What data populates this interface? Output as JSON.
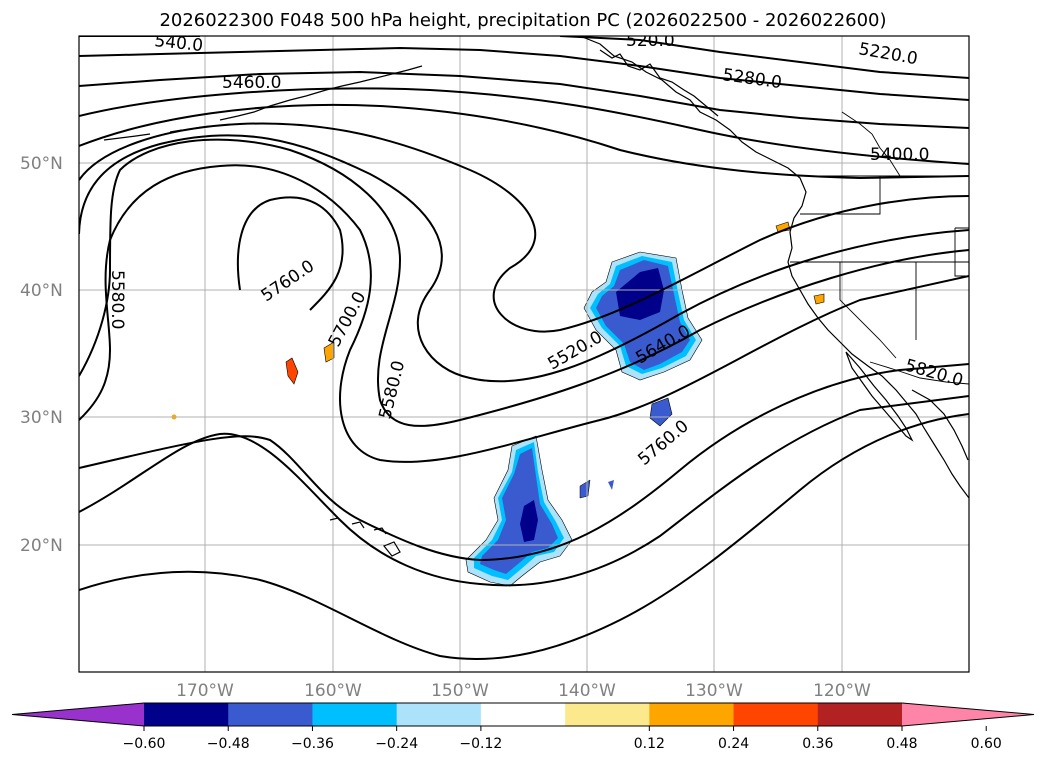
{
  "title": "2026022300 F048 500 hPa height, precipitation PC (2026022500 - 2026022600)",
  "lat_labels": [
    "50°N",
    "40°N",
    "30°N",
    "20°N"
  ],
  "lon_labels": [
    "170°W",
    "160°W",
    "150°W",
    "140°W",
    "130°W",
    "120°W"
  ],
  "contour_labels": {
    "c1": "5460.0",
    "c2": "5280.0",
    "c3": "5220.0",
    "c4": "5400.0",
    "c5": "5580.0",
    "c6": "5760.0",
    "c7": "5700.0",
    "c8": "5580.0",
    "c9": "5520.0",
    "c10": "5640.0",
    "c11": "5760.0",
    "c12": "5820.0",
    "c13": "540.0",
    "c14": "520.0"
  },
  "colorbar": {
    "ticks": [
      "−0.60",
      "−0.48",
      "−0.36",
      "−0.24",
      "−0.12",
      "0.12",
      "0.24",
      "0.36",
      "0.48",
      "0.60"
    ],
    "colors": [
      "#9932cc",
      "#00008b",
      "#3a5bd0",
      "#00bfff",
      "#ade3fa",
      "#ffffff",
      "#fde98d",
      "#ffa500",
      "#ff4500",
      "#b22222",
      "#ff85a8"
    ]
  },
  "colors": {
    "strong_negative": "#00008b",
    "negative": "#3a5bd0",
    "weak_negative": "#00bfff",
    "faint_negative": "#ade3fa",
    "positive": "#ffa500",
    "strong_positive": "#ff4500"
  }
}
